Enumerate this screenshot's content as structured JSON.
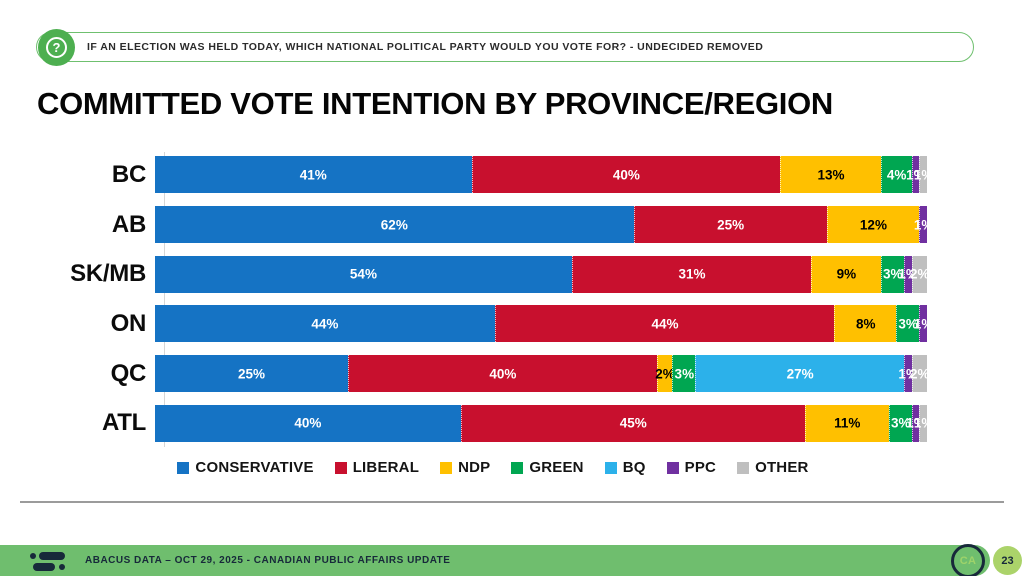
{
  "banner": {
    "question": "IF AN ELECTION WAS HELD TODAY, WHICH NATIONAL POLITICAL PARTY WOULD YOU VOTE FOR? - UNDECIDED REMOVED"
  },
  "title": "COMMITTED VOTE INTENTION BY PROVINCE/REGION",
  "chart_data": {
    "type": "bar",
    "variant": "horizontal-stacked",
    "unit": "%",
    "xlim": [
      0,
      100
    ],
    "grid": false,
    "legend_position": "bottom",
    "categories": [
      "BC",
      "AB",
      "SK/MB",
      "ON",
      "QC",
      "ATL"
    ],
    "series": [
      {
        "name": "CONSERVATIVE",
        "color": "#1573C4",
        "label_color": "#FFFFFF",
        "values": [
          41,
          62,
          54,
          44,
          25,
          40
        ]
      },
      {
        "name": "LIBERAL",
        "color": "#C8102E",
        "label_color": "#FFFFFF",
        "values": [
          40,
          25,
          31,
          44,
          40,
          45
        ]
      },
      {
        "name": "NDP",
        "color": "#FFC000",
        "label_color": "#000000",
        "values": [
          13,
          12,
          9,
          8,
          2,
          11
        ]
      },
      {
        "name": "GREEN",
        "color": "#00A651",
        "label_color": "#FFFFFF",
        "values": [
          4,
          0,
          3,
          3,
          3,
          3
        ]
      },
      {
        "name": "BQ",
        "color": "#2CB1EA",
        "label_color": "#FFFFFF",
        "values": [
          0,
          0,
          0,
          0,
          27,
          0
        ]
      },
      {
        "name": "PPC",
        "color": "#7030A0",
        "label_color": "#FFFFFF",
        "values": [
          1,
          1,
          1,
          1,
          1,
          1
        ]
      },
      {
        "name": "OTHER",
        "color": "#BFBFBF",
        "label_color": "#FFFFFF",
        "values": [
          1,
          0,
          2,
          0,
          2,
          1
        ]
      }
    ]
  },
  "footer": {
    "source": "ABACUS DATA – OCT 29, 2025 - CANADIAN PUBLIC AFFAIRS UPDATE",
    "badge": "CA",
    "page": "23"
  },
  "colors": {
    "footer_green": "#6FBE6E",
    "page_badge_green": "#ABD36A",
    "banner_border_green": "#6FC06F",
    "icon_green": "#4DAF50",
    "navy": "#17293A"
  }
}
